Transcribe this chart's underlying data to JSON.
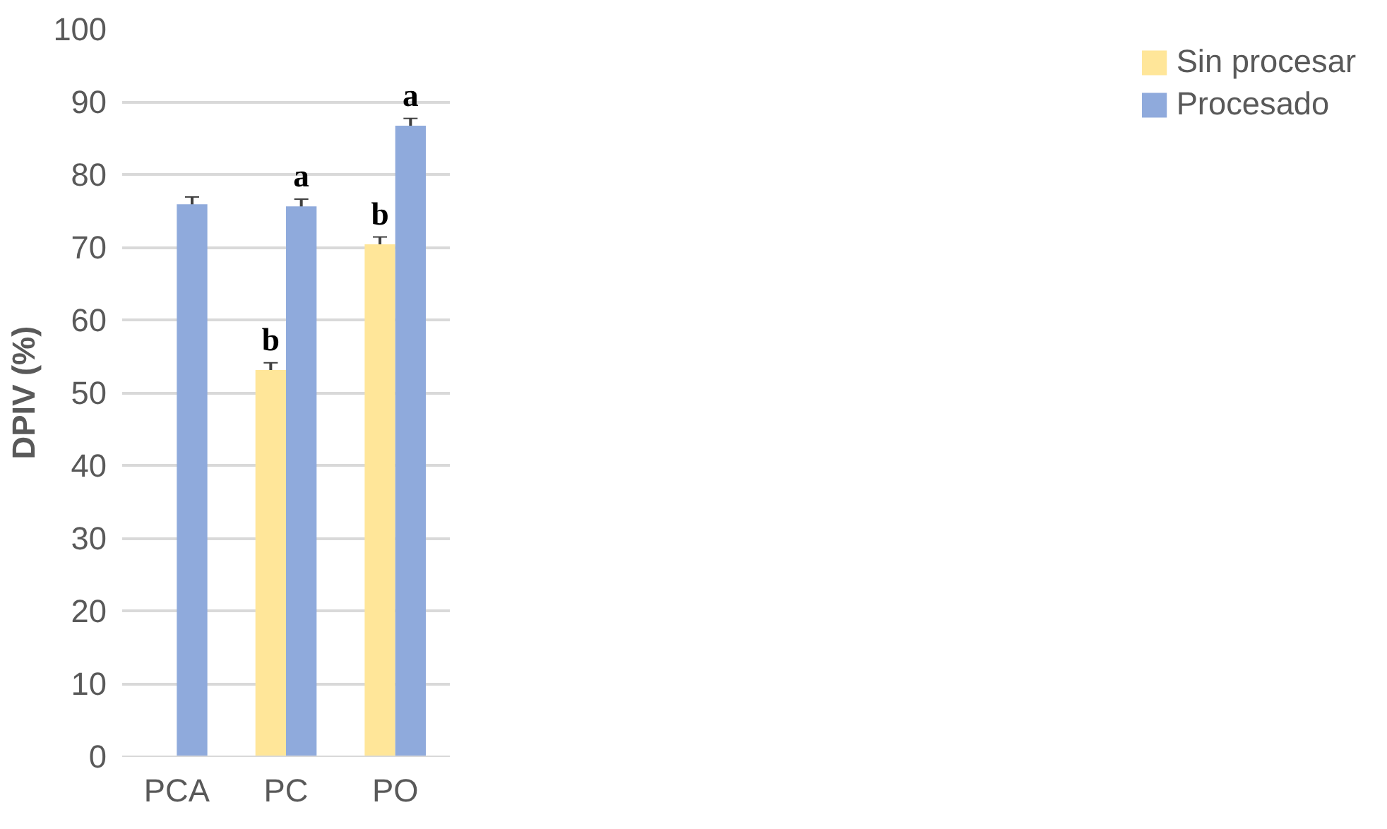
{
  "chart_data": {
    "type": "bar",
    "ylabel": "DPIV (%)",
    "categories": [
      "PCA",
      "PC",
      "PO"
    ],
    "series": [
      {
        "name": "Sin procesar",
        "color": "#ffe699",
        "values": [
          null,
          53.1,
          70.4
        ],
        "errors": [
          null,
          1,
          1
        ],
        "value_labels": [
          null,
          "b",
          "b"
        ]
      },
      {
        "name": "Procesado",
        "color": "#8faadc",
        "values": [
          75.9,
          75.6,
          86.7
        ],
        "errors": [
          1,
          1,
          1
        ],
        "value_labels": [
          null,
          "a",
          "a"
        ]
      }
    ],
    "ylim": [
      0,
      100
    ],
    "yticks": [
      0,
      10,
      20,
      30,
      40,
      50,
      60,
      70,
      80,
      90,
      100
    ],
    "grid": "y",
    "legend": "right"
  }
}
